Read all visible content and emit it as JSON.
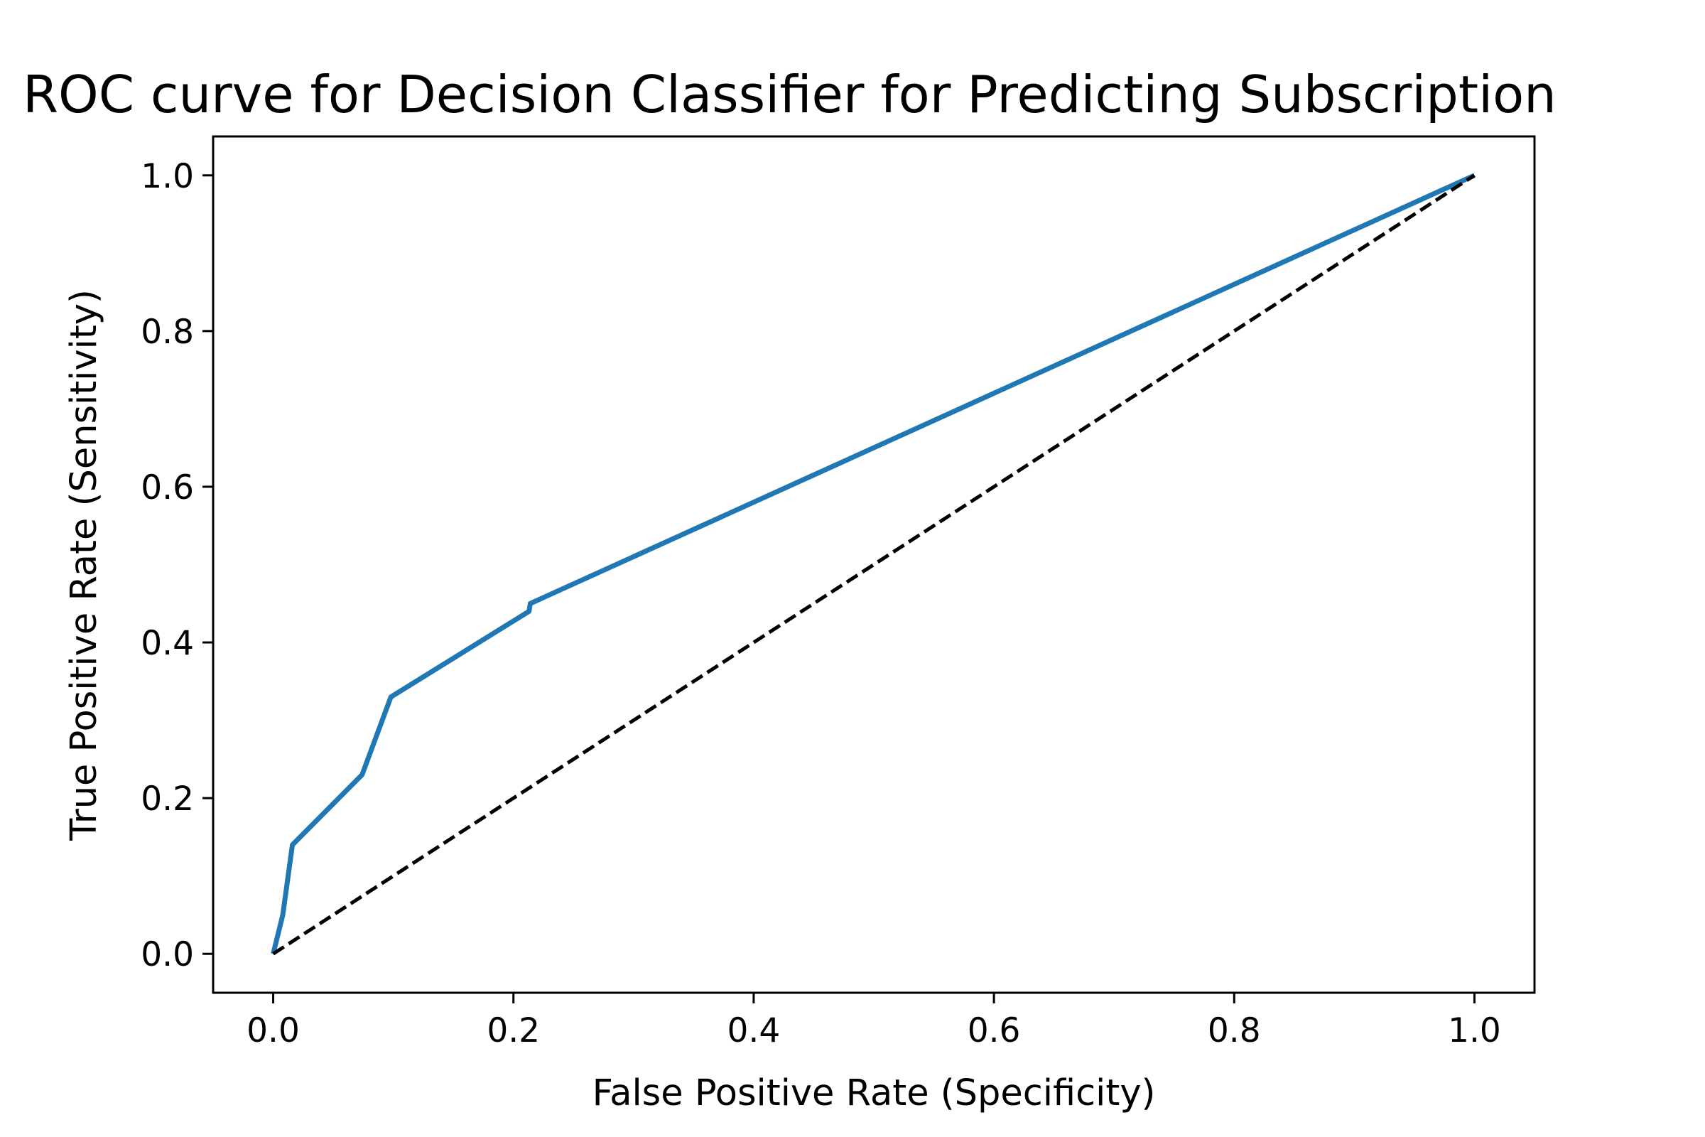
{
  "chart_data": {
    "type": "line",
    "title": "ROC curve for Decision Classifier for Predicting Subscription",
    "xlabel": "False Positive Rate (Specificity)",
    "ylabel": "True Positive Rate (Sensitivity)",
    "xlim": [
      -0.05,
      1.05
    ],
    "ylim": [
      -0.05,
      1.05
    ],
    "xticks": [
      0.0,
      0.2,
      0.4,
      0.6,
      0.8,
      1.0
    ],
    "yticks": [
      0.0,
      0.2,
      0.4,
      0.6,
      0.8,
      1.0
    ],
    "xtick_labels": [
      "0.0",
      "0.2",
      "0.4",
      "0.6",
      "0.8",
      "1.0"
    ],
    "ytick_labels": [
      "0.0",
      "0.2",
      "0.4",
      "0.6",
      "0.8",
      "1.0"
    ],
    "grid": false,
    "series": [
      {
        "color": "#1f77b4",
        "style": "solid",
        "x": [
          0.0,
          0.008,
          0.016,
          0.074,
          0.098,
          0.213,
          0.214,
          1.0
        ],
        "y": [
          0.0,
          0.05,
          0.14,
          0.23,
          0.33,
          0.44,
          0.45,
          1.0
        ]
      },
      {
        "color": "#000000",
        "style": "dashed",
        "x": [
          0.0,
          1.0
        ],
        "y": [
          0.0,
          1.0
        ]
      }
    ]
  }
}
